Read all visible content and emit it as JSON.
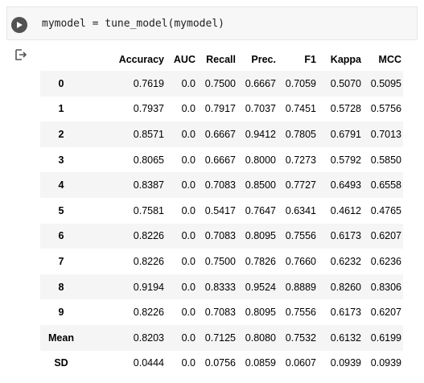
{
  "code_cell": {
    "code": "mymodel = tune_model(mymodel)",
    "run_icon": "play-icon",
    "output_icon": "output-arrow-icon"
  },
  "results_table": {
    "columns": [
      "Accuracy",
      "AUC",
      "Recall",
      "Prec.",
      "F1",
      "Kappa",
      "MCC"
    ],
    "rows": [
      {
        "index": "0",
        "values": [
          "0.7619",
          "0.0",
          "0.7500",
          "0.6667",
          "0.7059",
          "0.5070",
          "0.5095"
        ]
      },
      {
        "index": "1",
        "values": [
          "0.7937",
          "0.0",
          "0.7917",
          "0.7037",
          "0.7451",
          "0.5728",
          "0.5756"
        ]
      },
      {
        "index": "2",
        "values": [
          "0.8571",
          "0.0",
          "0.6667",
          "0.9412",
          "0.7805",
          "0.6791",
          "0.7013"
        ]
      },
      {
        "index": "3",
        "values": [
          "0.8065",
          "0.0",
          "0.6667",
          "0.8000",
          "0.7273",
          "0.5792",
          "0.5850"
        ]
      },
      {
        "index": "4",
        "values": [
          "0.8387",
          "0.0",
          "0.7083",
          "0.8500",
          "0.7727",
          "0.6493",
          "0.6558"
        ]
      },
      {
        "index": "5",
        "values": [
          "0.7581",
          "0.0",
          "0.5417",
          "0.7647",
          "0.6341",
          "0.4612",
          "0.4765"
        ]
      },
      {
        "index": "6",
        "values": [
          "0.8226",
          "0.0",
          "0.7083",
          "0.8095",
          "0.7556",
          "0.6173",
          "0.6207"
        ]
      },
      {
        "index": "7",
        "values": [
          "0.8226",
          "0.0",
          "0.7500",
          "0.7826",
          "0.7660",
          "0.6232",
          "0.6236"
        ]
      },
      {
        "index": "8",
        "values": [
          "0.9194",
          "0.0",
          "0.8333",
          "0.9524",
          "0.8889",
          "0.8260",
          "0.8306"
        ]
      },
      {
        "index": "9",
        "values": [
          "0.8226",
          "0.0",
          "0.7083",
          "0.8095",
          "0.7556",
          "0.6173",
          "0.6207"
        ]
      },
      {
        "index": "Mean",
        "values": [
          "0.8203",
          "0.0",
          "0.7125",
          "0.8080",
          "0.7532",
          "0.6132",
          "0.6199"
        ]
      },
      {
        "index": "SD",
        "values": [
          "0.0444",
          "0.0",
          "0.0756",
          "0.0859",
          "0.0607",
          "0.0939",
          "0.0939"
        ]
      }
    ]
  }
}
